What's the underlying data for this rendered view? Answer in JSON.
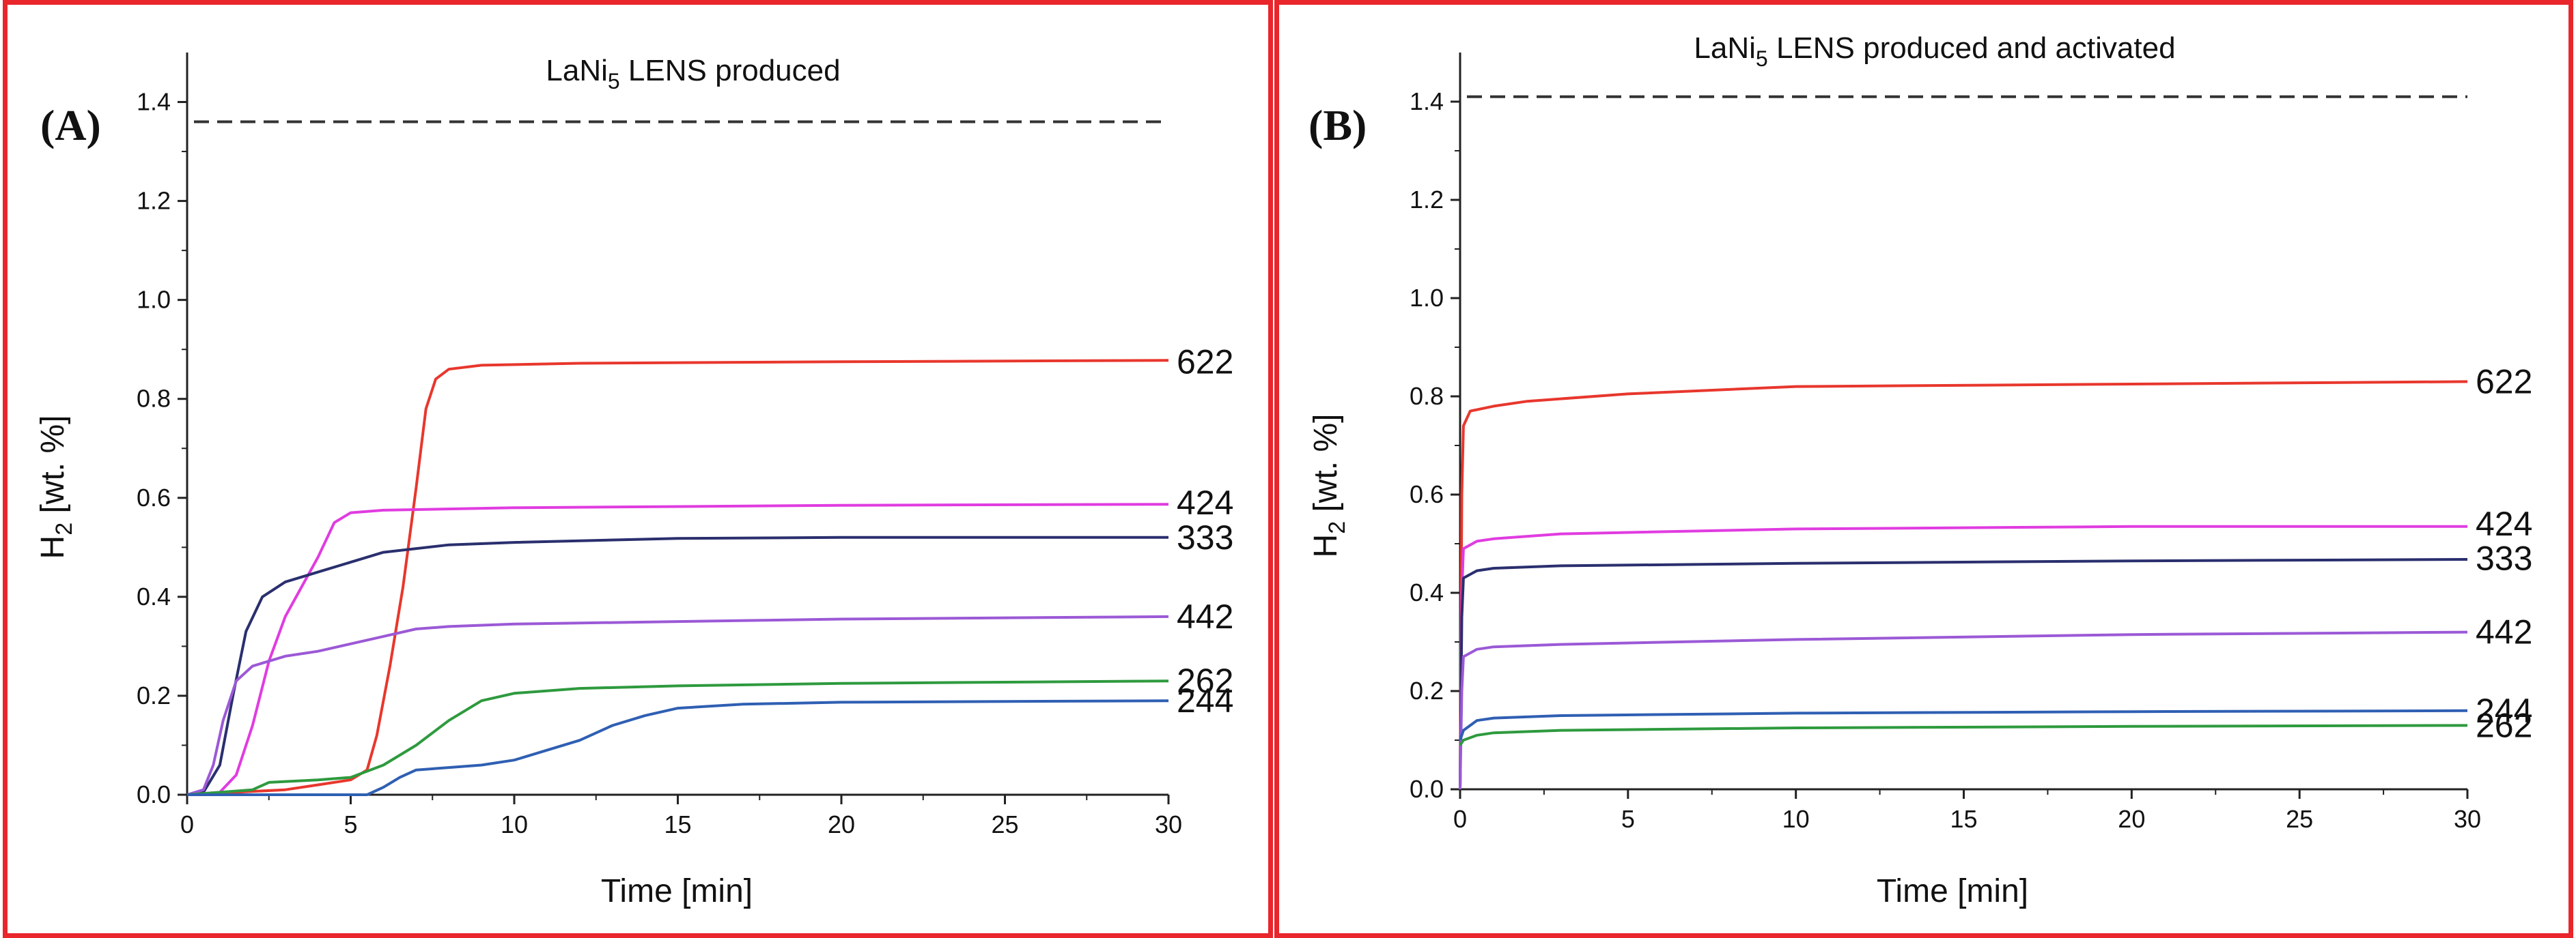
{
  "chart_data": [
    {
      "type": "line",
      "panel_label": "(A)",
      "title_prefix": "LaNi",
      "title_sub": "5",
      "title_suffix": " LENS produced",
      "xlabel": "Time [min]",
      "ylabel_main": "H",
      "ylabel_sub": "2",
      "ylabel_rest": " [wt. %]",
      "xlim": [
        0,
        30
      ],
      "ylim": [
        0,
        1.5
      ],
      "xticks": [
        0,
        5,
        10,
        15,
        20,
        25,
        30
      ],
      "yticks": [
        0.0,
        0.2,
        0.4,
        0.6,
        0.8,
        1.0,
        1.2,
        1.4
      ],
      "xtick_labels": [
        "0",
        "5",
        "10",
        "15",
        "20",
        "25",
        "30"
      ],
      "ytick_labels": [
        "0.0",
        "0.2",
        "0.4",
        "0.6",
        "0.8",
        "1.0",
        "1.2",
        "1.4"
      ],
      "reference_line": {
        "y": 1.36,
        "style": "dashed"
      },
      "series": [
        {
          "name": "622",
          "color": "#e8372d",
          "label_y": 0.875,
          "points": [
            [
              0,
              0
            ],
            [
              3,
              0.01
            ],
            [
              4,
              0.02
            ],
            [
              5,
              0.03
            ],
            [
              5.5,
              0.05
            ],
            [
              5.8,
              0.12
            ],
            [
              6.2,
              0.26
            ],
            [
              6.6,
              0.42
            ],
            [
              7,
              0.62
            ],
            [
              7.3,
              0.78
            ],
            [
              7.6,
              0.84
            ],
            [
              8,
              0.86
            ],
            [
              9,
              0.868
            ],
            [
              12,
              0.872
            ],
            [
              20,
              0.875
            ],
            [
              30,
              0.878
            ]
          ]
        },
        {
          "name": "424",
          "color": "#e03ce0",
          "label_y": 0.59,
          "points": [
            [
              0,
              0
            ],
            [
              1,
              0.005
            ],
            [
              1.5,
              0.04
            ],
            [
              2,
              0.14
            ],
            [
              2.5,
              0.27
            ],
            [
              3,
              0.36
            ],
            [
              3.5,
              0.42
            ],
            [
              4,
              0.48
            ],
            [
              4.5,
              0.55
            ],
            [
              5,
              0.57
            ],
            [
              6,
              0.575
            ],
            [
              10,
              0.58
            ],
            [
              20,
              0.585
            ],
            [
              30,
              0.587
            ]
          ]
        },
        {
          "name": "333",
          "color": "#2a2f6e",
          "label_y": 0.52,
          "points": [
            [
              0,
              0
            ],
            [
              0.5,
              0.005
            ],
            [
              1,
              0.06
            ],
            [
              1.4,
              0.2
            ],
            [
              1.8,
              0.33
            ],
            [
              2.3,
              0.4
            ],
            [
              3,
              0.43
            ],
            [
              4,
              0.45
            ],
            [
              5,
              0.47
            ],
            [
              6,
              0.49
            ],
            [
              8,
              0.505
            ],
            [
              10,
              0.51
            ],
            [
              15,
              0.518
            ],
            [
              20,
              0.52
            ],
            [
              30,
              0.52
            ]
          ]
        },
        {
          "name": "442",
          "color": "#9b59d6",
          "label_y": 0.36,
          "points": [
            [
              0,
              0
            ],
            [
              0.5,
              0.01
            ],
            [
              0.8,
              0.06
            ],
            [
              1.1,
              0.15
            ],
            [
              1.5,
              0.23
            ],
            [
              2,
              0.26
            ],
            [
              3,
              0.28
            ],
            [
              4,
              0.29
            ],
            [
              5,
              0.305
            ],
            [
              6,
              0.32
            ],
            [
              7,
              0.335
            ],
            [
              8,
              0.34
            ],
            [
              10,
              0.345
            ],
            [
              15,
              0.35
            ],
            [
              20,
              0.355
            ],
            [
              30,
              0.36
            ]
          ]
        },
        {
          "name": "262",
          "color": "#2e9a3e",
          "label_y": 0.23,
          "points": [
            [
              0,
              0
            ],
            [
              2,
              0.01
            ],
            [
              2.5,
              0.025
            ],
            [
              4,
              0.03
            ],
            [
              5,
              0.035
            ],
            [
              6,
              0.06
            ],
            [
              7,
              0.1
            ],
            [
              8,
              0.15
            ],
            [
              9,
              0.19
            ],
            [
              10,
              0.205
            ],
            [
              12,
              0.215
            ],
            [
              15,
              0.22
            ],
            [
              20,
              0.225
            ],
            [
              30,
              0.23
            ]
          ]
        },
        {
          "name": "244",
          "color": "#2f5fb3",
          "label_y": 0.19,
          "points": [
            [
              0,
              0
            ],
            [
              5.5,
              0
            ],
            [
              6,
              0.015
            ],
            [
              6.5,
              0.035
            ],
            [
              7,
              0.05
            ],
            [
              8,
              0.055
            ],
            [
              9,
              0.06
            ],
            [
              10,
              0.07
            ],
            [
              11,
              0.09
            ],
            [
              12,
              0.11
            ],
            [
              13,
              0.14
            ],
            [
              14,
              0.16
            ],
            [
              15,
              0.175
            ],
            [
              17,
              0.183
            ],
            [
              20,
              0.187
            ],
            [
              30,
              0.19
            ]
          ]
        }
      ]
    },
    {
      "type": "line",
      "panel_label": "(B)",
      "title_prefix": "LaNi",
      "title_sub": "5",
      "title_suffix": " LENS produced and activated",
      "xlabel": "Time [min]",
      "ylabel_main": "H",
      "ylabel_sub": "2",
      "ylabel_rest": " [wt. %]",
      "xlim": [
        0,
        30
      ],
      "ylim": [
        0,
        1.5
      ],
      "xticks": [
        0,
        5,
        10,
        15,
        20,
        25,
        30
      ],
      "yticks": [
        0.0,
        0.2,
        0.4,
        0.6,
        0.8,
        1.0,
        1.2,
        1.4
      ],
      "xtick_labels": [
        "0",
        "5",
        "10",
        "15",
        "20",
        "25",
        "30"
      ],
      "ytick_labels": [
        "0.0",
        "0.2",
        "0.4",
        "0.6",
        "0.8",
        "1.0",
        "1.2",
        "1.4"
      ],
      "reference_line": {
        "y": 1.41,
        "style": "dashed"
      },
      "series": [
        {
          "name": "622",
          "color": "#e8372d",
          "label_y": 0.83,
          "points": [
            [
              0,
              0
            ],
            [
              0.05,
              0.6
            ],
            [
              0.1,
              0.74
            ],
            [
              0.3,
              0.77
            ],
            [
              1,
              0.78
            ],
            [
              2,
              0.79
            ],
            [
              5,
              0.805
            ],
            [
              10,
              0.82
            ],
            [
              20,
              0.825
            ],
            [
              30,
              0.83
            ]
          ]
        },
        {
          "name": "424",
          "color": "#e03ce0",
          "label_y": 0.54,
          "points": [
            [
              0,
              0
            ],
            [
              0.05,
              0.4
            ],
            [
              0.1,
              0.49
            ],
            [
              0.5,
              0.505
            ],
            [
              1,
              0.51
            ],
            [
              3,
              0.52
            ],
            [
              10,
              0.53
            ],
            [
              20,
              0.535
            ],
            [
              30,
              0.535
            ]
          ]
        },
        {
          "name": "333",
          "color": "#2a2f6e",
          "label_y": 0.47,
          "points": [
            [
              0,
              0
            ],
            [
              0.05,
              0.35
            ],
            [
              0.1,
              0.43
            ],
            [
              0.5,
              0.445
            ],
            [
              1,
              0.45
            ],
            [
              3,
              0.455
            ],
            [
              10,
              0.46
            ],
            [
              20,
              0.465
            ],
            [
              30,
              0.468
            ]
          ]
        },
        {
          "name": "442",
          "color": "#9b59d6",
          "label_y": 0.32,
          "points": [
            [
              0,
              0
            ],
            [
              0.05,
              0.2
            ],
            [
              0.1,
              0.27
            ],
            [
              0.5,
              0.285
            ],
            [
              1,
              0.29
            ],
            [
              3,
              0.295
            ],
            [
              10,
              0.305
            ],
            [
              20,
              0.315
            ],
            [
              30,
              0.32
            ]
          ]
        },
        {
          "name": "244",
          "color": "#2f5fb3",
          "label_y": 0.16,
          "points": [
            [
              0,
              0.1
            ],
            [
              0.1,
              0.12
            ],
            [
              0.5,
              0.14
            ],
            [
              1,
              0.145
            ],
            [
              3,
              0.15
            ],
            [
              10,
              0.155
            ],
            [
              20,
              0.158
            ],
            [
              30,
              0.16
            ]
          ]
        },
        {
          "name": "262",
          "color": "#2e9a3e",
          "label_y": 0.13,
          "points": [
            [
              0,
              0.09
            ],
            [
              0.1,
              0.1
            ],
            [
              0.5,
              0.11
            ],
            [
              1,
              0.115
            ],
            [
              3,
              0.12
            ],
            [
              10,
              0.125
            ],
            [
              20,
              0.128
            ],
            [
              30,
              0.13
            ]
          ]
        }
      ]
    }
  ]
}
